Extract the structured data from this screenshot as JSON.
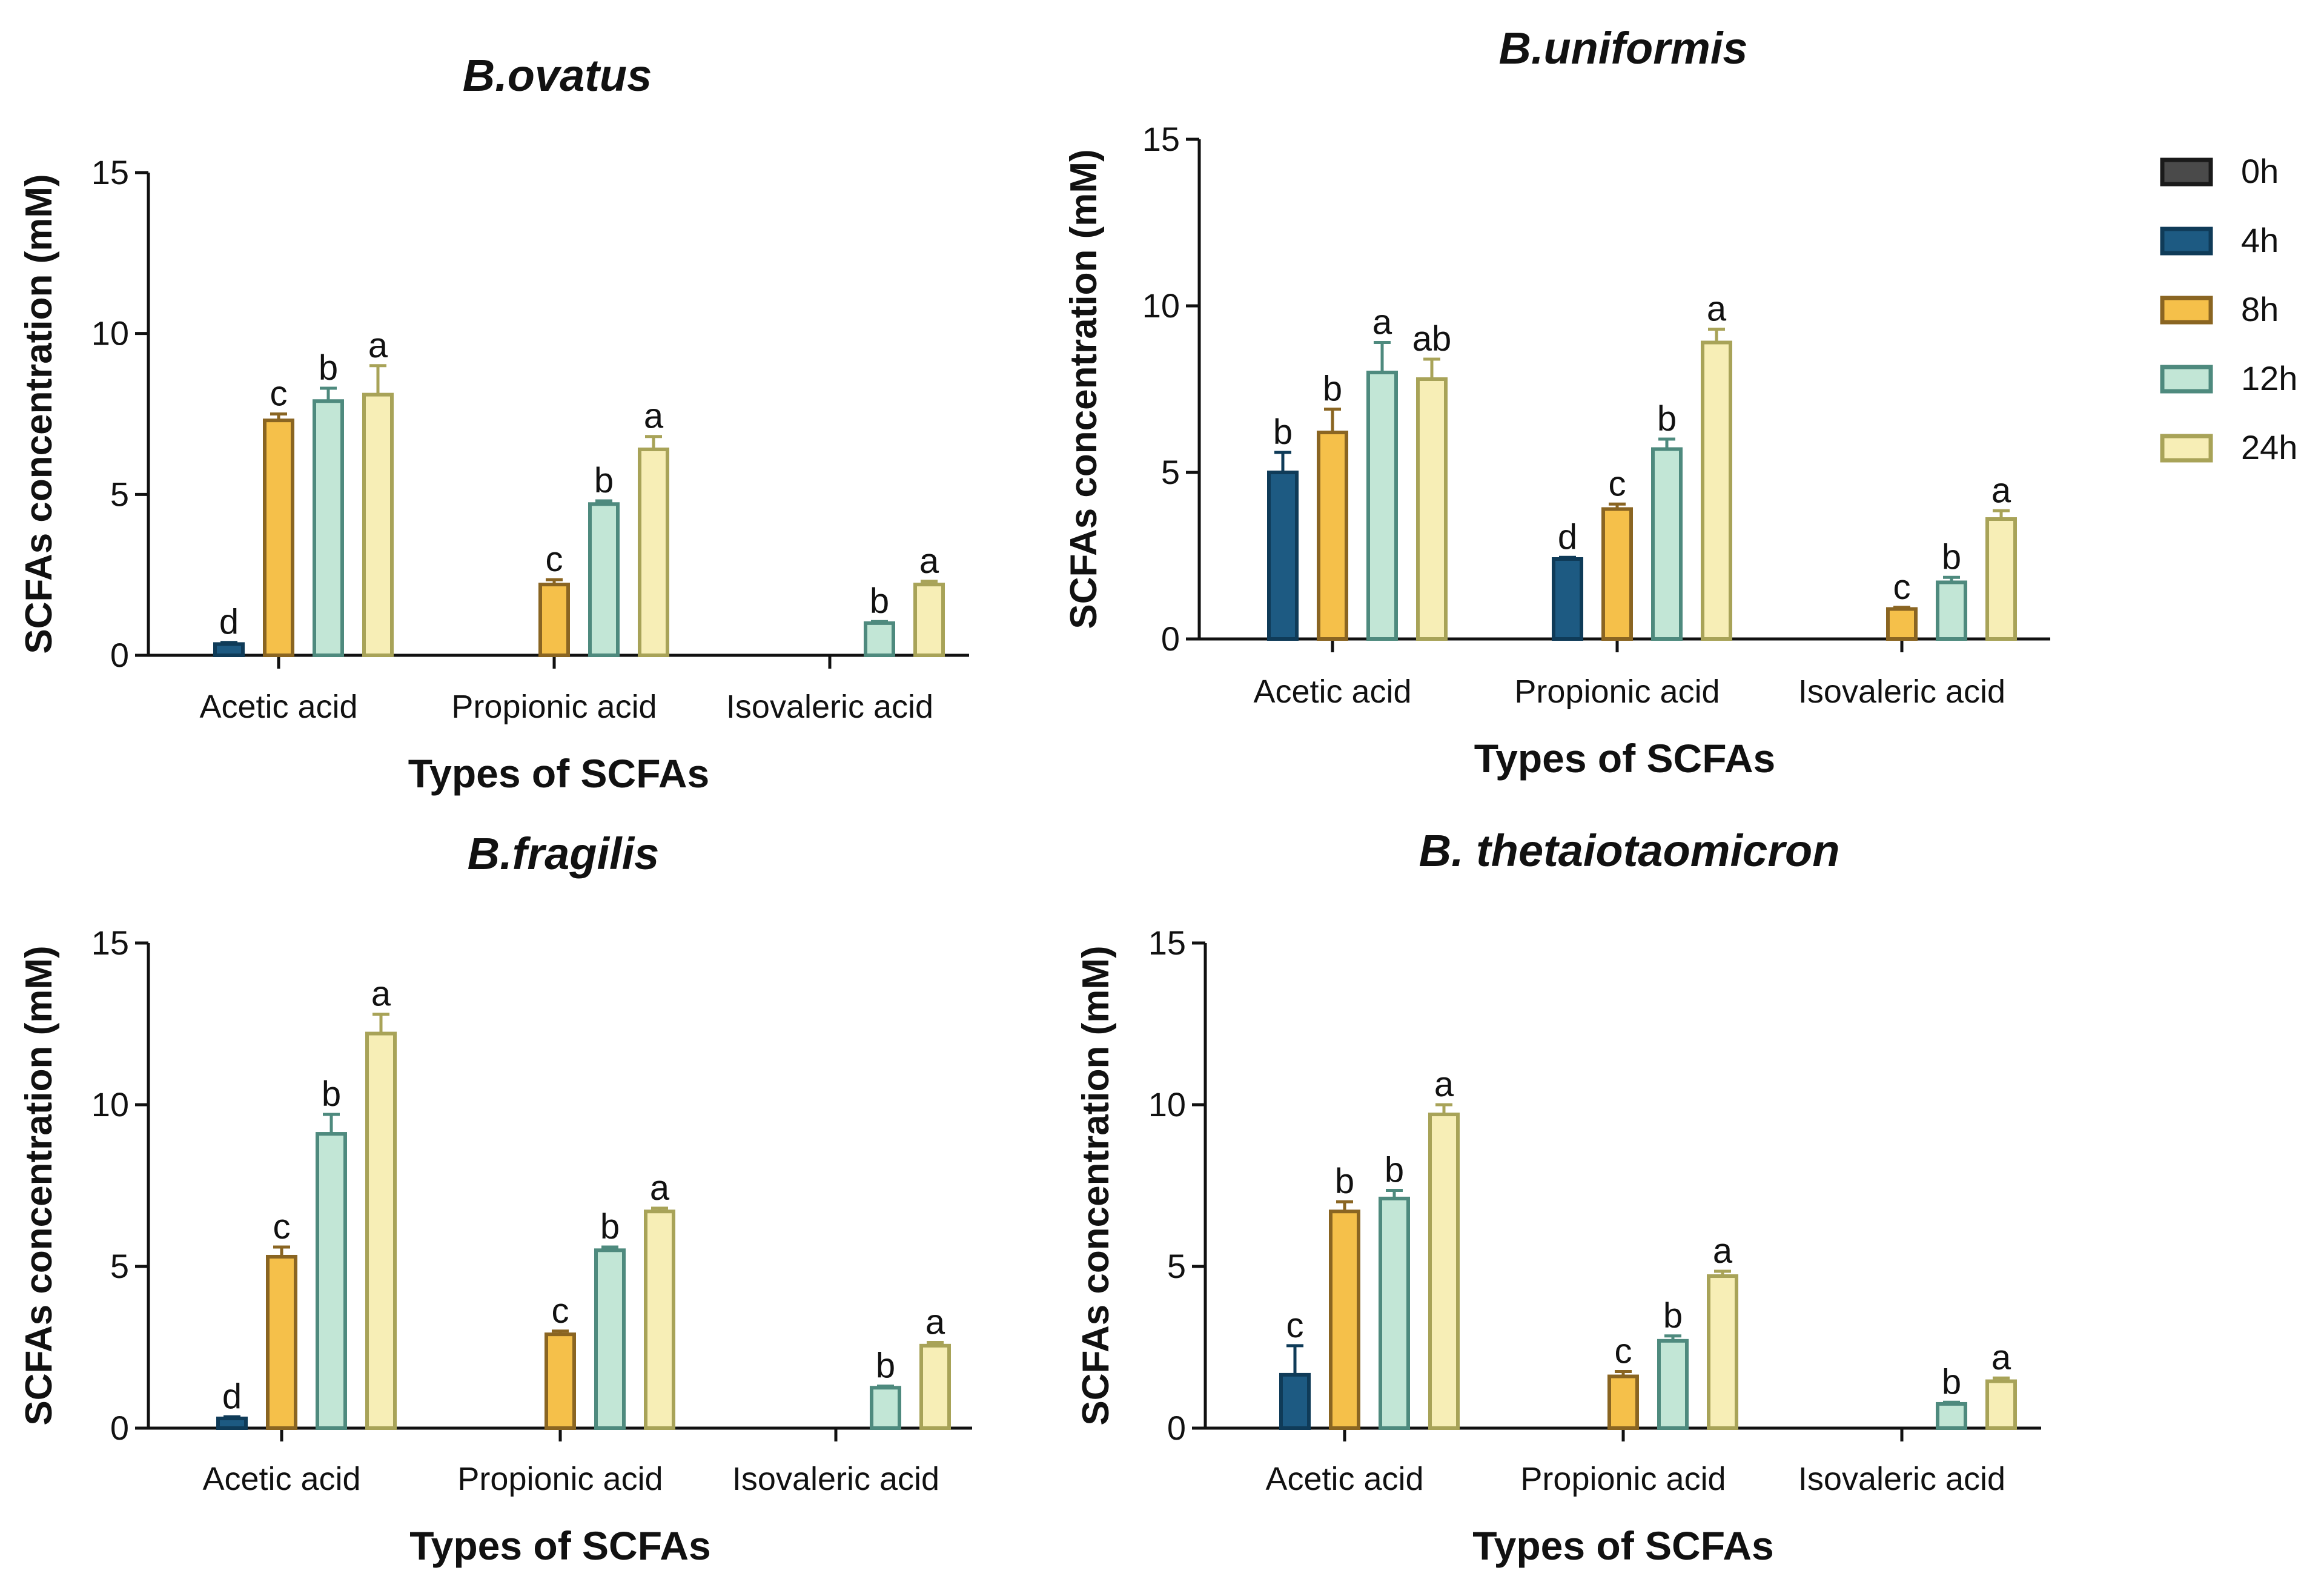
{
  "chart_data": [
    {
      "type": "bar",
      "title": "B.ovatus",
      "xlabel": "Types of SCFAs",
      "ylabel": "SCFAs concentration (mM)",
      "ylim": [
        0,
        15
      ],
      "yticks": [
        0,
        5,
        10,
        15
      ],
      "categories": [
        "Acetic acid",
        "Propionic acid",
        "Isovaleric acid"
      ],
      "series": [
        {
          "name": "0h",
          "values": [
            0,
            0,
            0
          ],
          "errors": [
            0,
            0,
            0
          ],
          "labels": [
            "",
            "",
            ""
          ]
        },
        {
          "name": "4h",
          "values": [
            0.35,
            0,
            0
          ],
          "errors": [
            0.05,
            0,
            0
          ],
          "labels": [
            "d",
            "",
            ""
          ]
        },
        {
          "name": "8h",
          "values": [
            7.3,
            2.2,
            0
          ],
          "errors": [
            0.2,
            0.15,
            0
          ],
          "labels": [
            "c",
            "c",
            ""
          ]
        },
        {
          "name": "12h",
          "values": [
            7.9,
            4.7,
            1.0
          ],
          "errors": [
            0.4,
            0.1,
            0.05
          ],
          "labels": [
            "b",
            "b",
            "b"
          ]
        },
        {
          "name": "24h",
          "values": [
            8.1,
            6.4,
            2.2
          ],
          "errors": [
            0.9,
            0.4,
            0.1
          ],
          "labels": [
            "a",
            "a",
            "a"
          ]
        }
      ]
    },
    {
      "type": "bar",
      "title": "B.uniformis",
      "xlabel": "Types of SCFAs",
      "ylabel": "SCFAs concentration (mM)",
      "ylim": [
        0,
        15
      ],
      "yticks": [
        0,
        5,
        10,
        15
      ],
      "categories": [
        "Acetic acid",
        "Propionic acid",
        "Isovaleric acid"
      ],
      "series": [
        {
          "name": "0h",
          "values": [
            0,
            0,
            0
          ],
          "errors": [
            0,
            0,
            0
          ],
          "labels": [
            "",
            "",
            ""
          ]
        },
        {
          "name": "4h",
          "values": [
            5.0,
            2.4,
            0
          ],
          "errors": [
            0.6,
            0.05,
            0
          ],
          "labels": [
            "b",
            "d",
            ""
          ]
        },
        {
          "name": "8h",
          "values": [
            6.2,
            3.9,
            0.9
          ],
          "errors": [
            0.7,
            0.15,
            0.05
          ],
          "labels": [
            "b",
            "c",
            "c"
          ]
        },
        {
          "name": "12h",
          "values": [
            8.0,
            5.7,
            1.7
          ],
          "errors": [
            0.9,
            0.3,
            0.15
          ],
          "labels": [
            "a",
            "b",
            "b"
          ]
        },
        {
          "name": "24h",
          "values": [
            7.8,
            8.9,
            3.6
          ],
          "errors": [
            0.6,
            0.4,
            0.25
          ],
          "labels": [
            "ab",
            "a",
            "a"
          ]
        }
      ]
    },
    {
      "type": "bar",
      "title": "B.fragilis",
      "xlabel": "Types of SCFAs",
      "ylabel": "SCFAs concentration (mM)",
      "ylim": [
        0,
        15
      ],
      "yticks": [
        0,
        5,
        10,
        15
      ],
      "categories": [
        "Acetic acid",
        "Propionic acid",
        "Isovaleric acid"
      ],
      "series": [
        {
          "name": "0h",
          "values": [
            0,
            0,
            0
          ],
          "errors": [
            0,
            0,
            0
          ],
          "labels": [
            "",
            "",
            ""
          ]
        },
        {
          "name": "4h",
          "values": [
            0.3,
            0,
            0
          ],
          "errors": [
            0.05,
            0,
            0
          ],
          "labels": [
            "d",
            "",
            ""
          ]
        },
        {
          "name": "8h",
          "values": [
            5.3,
            2.9,
            0
          ],
          "errors": [
            0.3,
            0.1,
            0
          ],
          "labels": [
            "c",
            "c",
            ""
          ]
        },
        {
          "name": "12h",
          "values": [
            9.1,
            5.5,
            1.25
          ],
          "errors": [
            0.6,
            0.1,
            0.05
          ],
          "labels": [
            "b",
            "b",
            "b"
          ]
        },
        {
          "name": "24h",
          "values": [
            12.2,
            6.7,
            2.55
          ],
          "errors": [
            0.6,
            0.1,
            0.1
          ],
          "labels": [
            "a",
            "a",
            "a"
          ]
        }
      ]
    },
    {
      "type": "bar",
      "title": "B. thetaiotaomicron",
      "xlabel": "Types of SCFAs",
      "ylabel": "SCFAs concentration (mM)",
      "ylim": [
        0,
        15
      ],
      "yticks": [
        0,
        5,
        10,
        15
      ],
      "categories": [
        "Acetic acid",
        "Propionic acid",
        "Isovaleric acid"
      ],
      "series": [
        {
          "name": "0h",
          "values": [
            0,
            0,
            0
          ],
          "errors": [
            0,
            0,
            0
          ],
          "labels": [
            "",
            "",
            ""
          ]
        },
        {
          "name": "4h",
          "values": [
            1.65,
            0,
            0
          ],
          "errors": [
            0.9,
            0,
            0
          ],
          "labels": [
            "c",
            "",
            ""
          ]
        },
        {
          "name": "8h",
          "values": [
            6.7,
            1.6,
            0
          ],
          "errors": [
            0.3,
            0.15,
            0
          ],
          "labels": [
            "b",
            "c",
            ""
          ]
        },
        {
          "name": "12h",
          "values": [
            7.1,
            2.7,
            0.75
          ],
          "errors": [
            0.25,
            0.15,
            0.05
          ],
          "labels": [
            "b",
            "b",
            "b"
          ]
        },
        {
          "name": "24h",
          "values": [
            9.7,
            4.7,
            1.45
          ],
          "errors": [
            0.3,
            0.15,
            0.1
          ],
          "labels": [
            "a",
            "a",
            "a"
          ]
        }
      ]
    }
  ],
  "legend": {
    "entries": [
      {
        "name": "0h",
        "fill": "#4a4a4a",
        "stroke": "#1a1a1a"
      },
      {
        "name": "4h",
        "fill": "#1d5a82",
        "stroke": "#0f3b58"
      },
      {
        "name": "8h",
        "fill": "#f5c04a",
        "stroke": "#8a6522"
      },
      {
        "name": "12h",
        "fill": "#c2e6d6",
        "stroke": "#4e8a7e"
      },
      {
        "name": "24h",
        "fill": "#f7eeb6",
        "stroke": "#a8a358"
      }
    ]
  }
}
